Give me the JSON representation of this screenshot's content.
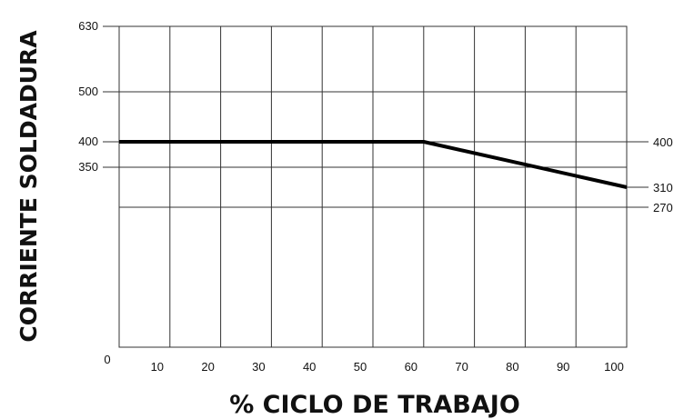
{
  "chart_data": {
    "type": "line",
    "title": "",
    "xlabel": "% CICLO DE TRABAJO",
    "ylabel": "CORRIENTE SOLDADURA",
    "x_ticks": [
      "0",
      "10",
      "20",
      "30",
      "40",
      "50",
      "60",
      "70",
      "80",
      "90",
      "100"
    ],
    "y_ticks": [
      "630",
      "500",
      "400",
      "350"
    ],
    "right_labels": [
      "400",
      "310",
      "270"
    ],
    "xlim": [
      0,
      100
    ],
    "ylim": [
      0,
      630
    ],
    "grid": true,
    "series": [
      {
        "x": [
          0,
          60,
          100
        ],
        "y": [
          400,
          400,
          310
        ]
      }
    ],
    "reference_lines": [
      270
    ]
  },
  "colors": {
    "line": "#000000",
    "grid": "#333333"
  }
}
